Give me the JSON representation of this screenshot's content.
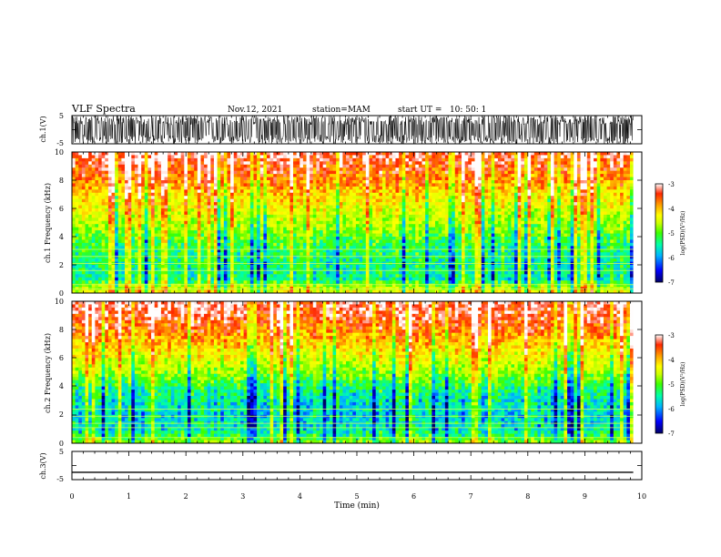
{
  "header": {
    "title": "VLF Spectra",
    "date": "Nov.12, 2021",
    "station": "station=MAM",
    "start": "start UT =   10: 50: 1"
  },
  "colors": {
    "background": "#ffffff",
    "axis": "#000000",
    "colormap": [
      "#000066",
      "#0000ff",
      "#00b4ff",
      "#00ffaa",
      "#3cff00",
      "#ccff00",
      "#ffff00",
      "#ffa500",
      "#ff2800",
      "#ffffff"
    ]
  },
  "chart_data": [
    {
      "type": "line",
      "panel": "ch.1 waveform",
      "ylabel": "ch.1(V)",
      "ylim": [
        -5,
        5
      ],
      "yticks": [
        "5",
        "-5"
      ],
      "xlim": [
        0,
        10
      ],
      "description_values": {
        "signal_extent_min": 9.85,
        "amplitude_range_V": [
          -5,
          5
        ]
      }
    },
    {
      "type": "heatmap",
      "panel": "ch.1 spectrogram",
      "ylabel": "ch.1 Frequency (kHz)",
      "ylim": [
        0,
        10
      ],
      "yticks": [
        "0",
        "2",
        "4",
        "6",
        "8",
        "10"
      ],
      "xlim": [
        0,
        10
      ],
      "data_extent_min": 9.85,
      "colorbar": {
        "label": "log(PSD)(V²/Hz)",
        "range": [
          -7,
          -3
        ],
        "ticks": [
          "-3",
          "-4",
          "-5",
          "-6",
          "-7"
        ]
      },
      "profile_freq_kHz": [
        0,
        0.5,
        1,
        2,
        3,
        4,
        5,
        6,
        7,
        8,
        9,
        10
      ],
      "profile_logPSD": [
        -4.4,
        -4.9,
        -5.6,
        -5.6,
        -5.45,
        -5.2,
        -4.8,
        -4.5,
        -4.2,
        -3.8,
        -3.45,
        -3.2
      ],
      "persistent_lines_kHz": [
        0.3,
        0.6,
        1.6,
        2.1,
        2.6,
        3.1
      ]
    },
    {
      "type": "heatmap",
      "panel": "ch.2 spectrogram",
      "ylabel": "ch.2 Frequency (kHz)",
      "ylim": [
        0,
        10
      ],
      "yticks": [
        "0",
        "2",
        "4",
        "6",
        "8",
        "10"
      ],
      "xlim": [
        0,
        10
      ],
      "data_extent_min": 9.85,
      "colorbar": {
        "label": "log(PSD)(V²/Hz)",
        "range": [
          -7,
          -3
        ],
        "ticks": [
          "-3",
          "-4",
          "-5",
          "-6",
          "-7"
        ]
      },
      "profile_freq_kHz": [
        0,
        0.5,
        1,
        2,
        3,
        4,
        5,
        6,
        7,
        8,
        9,
        10
      ],
      "profile_logPSD": [
        -4.9,
        -5.4,
        -5.8,
        -5.85,
        -5.75,
        -5.45,
        -4.9,
        -4.5,
        -4.1,
        -3.7,
        -3.35,
        -3.15
      ],
      "persistent_lines_kHz": [
        0.4,
        1.1,
        1.4,
        1.9,
        2.4
      ]
    },
    {
      "type": "line",
      "panel": "ch.3 waveform",
      "ylabel": "ch.3(V)",
      "ylim": [
        -5,
        5
      ],
      "yticks": [
        "5",
        "-5"
      ],
      "xlim": [
        0,
        10
      ],
      "x": [
        0,
        9.85
      ],
      "y": [
        -2.4,
        -2.4
      ]
    }
  ],
  "xaxis": {
    "label": "Time (min)",
    "ticks": [
      "0",
      "1",
      "2",
      "3",
      "4",
      "5",
      "6",
      "7",
      "8",
      "9",
      "10"
    ]
  }
}
